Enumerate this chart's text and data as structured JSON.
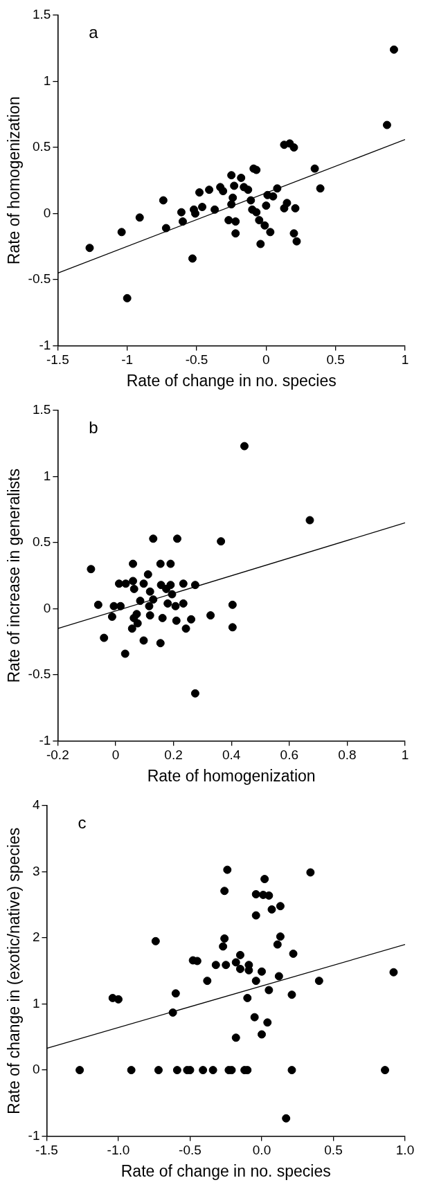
{
  "chart_data": [
    {
      "type": "scatter",
      "xlabel": "Rate of change in no. species",
      "ylabel": "Rate of homogenization",
      "annotations": [
        "a"
      ],
      "xlim": [
        -1.5,
        1
      ],
      "xticks": [
        -1.5,
        -1,
        -0.5,
        0,
        0.5,
        1
      ],
      "ylim": [
        -1,
        1.5
      ],
      "yticks": [
        -1,
        -0.5,
        0,
        0.5,
        1,
        1.5
      ],
      "grid": false,
      "legend": false,
      "marker": "circle",
      "series": [
        {
          "color": "#000000",
          "x": [
            -1.27,
            -1.04,
            -1.0,
            -0.91,
            -0.74,
            -0.72,
            -0.61,
            -0.6,
            -0.53,
            -0.52,
            -0.51,
            -0.48,
            -0.46,
            -0.41,
            -0.37,
            -0.33,
            -0.31,
            -0.27,
            -0.25,
            -0.25,
            -0.24,
            -0.23,
            -0.22,
            -0.22,
            -0.18,
            -0.16,
            -0.13,
            -0.11,
            -0.09,
            -0.07,
            -0.1,
            -0.07,
            -0.05,
            -0.04,
            -0.01,
            0.0,
            0.01,
            0.03,
            0.05,
            0.08,
            0.13,
            0.17,
            0.2,
            0.13,
            0.15,
            0.21,
            0.2,
            0.22,
            0.35,
            0.39,
            0.87,
            0.92
          ],
          "values": [
            -0.26,
            -0.14,
            -0.64,
            -0.03,
            0.1,
            -0.11,
            0.01,
            -0.06,
            -0.34,
            0.03,
            0.0,
            0.16,
            0.05,
            0.18,
            0.03,
            0.2,
            0.17,
            -0.05,
            0.29,
            0.07,
            0.12,
            0.21,
            -0.06,
            -0.15,
            0.27,
            0.2,
            0.18,
            0.1,
            0.34,
            0.33,
            0.03,
            0.01,
            -0.05,
            -0.23,
            -0.09,
            0.06,
            0.14,
            -0.14,
            0.13,
            0.19,
            0.52,
            0.53,
            0.5,
            0.04,
            0.08,
            0.04,
            -0.15,
            -0.21,
            0.34,
            0.19,
            0.67,
            1.24
          ]
        },
        {
          "type": "line",
          "marker": "none",
          "color": "#000000",
          "x": [
            -1.5,
            1
          ],
          "values": [
            -0.45,
            0.56
          ]
        }
      ]
    },
    {
      "type": "scatter",
      "xlabel": "Rate of homogenization",
      "ylabel": "Rate of increase in generalists",
      "annotations": [
        "b"
      ],
      "xlim": [
        -0.2,
        1
      ],
      "xticks": [
        -0.2,
        0,
        0.2,
        0.4,
        0.6,
        0.8,
        1
      ],
      "ylim": [
        -1,
        1.5
      ],
      "yticks": [
        -1,
        -0.5,
        0,
        0.5,
        1,
        1.5
      ],
      "grid": false,
      "legend": false,
      "marker": "circle",
      "series": [
        {
          "color": "#000000",
          "x": [
            -0.085,
            -0.06,
            -0.04,
            -0.012,
            -0.006,
            0.017,
            0.012,
            0.035,
            0.033,
            0.06,
            0.06,
            0.064,
            0.063,
            0.073,
            0.076,
            0.057,
            0.085,
            0.097,
            0.097,
            0.112,
            0.116,
            0.119,
            0.119,
            0.13,
            0.13,
            0.155,
            0.155,
            0.157,
            0.162,
            0.175,
            0.18,
            0.19,
            0.19,
            0.195,
            0.207,
            0.21,
            0.213,
            0.234,
            0.234,
            0.243,
            0.261,
            0.275,
            0.275,
            0.328,
            0.364,
            0.404,
            0.404,
            0.445,
            0.671
          ],
          "values": [
            0.3,
            0.03,
            -0.22,
            -0.06,
            0.02,
            0.02,
            0.19,
            0.19,
            -0.34,
            0.34,
            0.21,
            0.15,
            -0.07,
            -0.04,
            -0.11,
            -0.15,
            0.06,
            0.19,
            -0.24,
            0.26,
            0.02,
            0.13,
            -0.05,
            0.53,
            0.07,
            -0.26,
            0.34,
            0.18,
            -0.07,
            0.15,
            0.04,
            0.34,
            0.18,
            0.11,
            0.02,
            -0.09,
            0.53,
            0.04,
            0.19,
            -0.15,
            -0.08,
            0.18,
            -0.64,
            -0.05,
            0.51,
            0.03,
            -0.14,
            1.23,
            0.67
          ]
        },
        {
          "type": "line",
          "marker": "none",
          "color": "#000000",
          "x": [
            -0.2,
            1
          ],
          "values": [
            -0.15,
            0.65
          ]
        }
      ]
    },
    {
      "type": "scatter",
      "xlabel": "Rate of change in no. species",
      "ylabel": "Rate of change in (exotic/native) species",
      "annotations": [
        "c"
      ],
      "xlim": [
        -1.5,
        1
      ],
      "xticks": [
        {
          "value": -1.5,
          "label": "-1.5"
        },
        {
          "value": -1,
          "label": "-1.0"
        },
        {
          "value": -0.5,
          "label": "-0.5"
        },
        {
          "value": 0,
          "label": "0.0"
        },
        {
          "value": 0.5,
          "label": "0.5"
        },
        {
          "value": 1,
          "label": "1.0"
        }
      ],
      "ylim": [
        -1,
        4
      ],
      "yticks": [
        -1,
        0,
        1,
        2,
        3,
        4
      ],
      "grid": false,
      "legend": false,
      "marker": "circle",
      "series": [
        {
          "color": "#000000",
          "x": [
            -1.27,
            -1.04,
            -1.0,
            -0.91,
            -0.74,
            -0.72,
            -0.62,
            -0.6,
            -0.59,
            -0.52,
            -0.5,
            -0.48,
            -0.45,
            -0.41,
            -0.38,
            -0.34,
            -0.32,
            -0.27,
            -0.26,
            -0.26,
            -0.24,
            -0.25,
            -0.23,
            -0.21,
            -0.18,
            -0.18,
            -0.15,
            -0.15,
            -0.12,
            -0.1,
            -0.1,
            -0.09,
            -0.09,
            -0.05,
            -0.04,
            -0.04,
            -0.04,
            0.0,
            0.0,
            0.01,
            0.02,
            0.04,
            0.05,
            0.05,
            0.07,
            0.11,
            0.12,
            0.13,
            0.13,
            0.17,
            0.21,
            0.21,
            0.22,
            0.34,
            0.4,
            0.86,
            0.92
          ],
          "values": [
            0,
            1.09,
            1.07,
            0,
            1.95,
            0,
            0.87,
            1.16,
            0,
            0,
            0,
            1.66,
            1.65,
            0,
            1.35,
            0,
            1.59,
            1.87,
            1.99,
            2.71,
            3.03,
            1.59,
            0,
            0,
            0.49,
            1.63,
            1.74,
            1.53,
            0,
            0,
            1.09,
            1.59,
            1.51,
            0.8,
            1.35,
            2.34,
            2.66,
            1.49,
            0.54,
            2.65,
            2.89,
            0.72,
            2.64,
            1.21,
            2.43,
            1.9,
            1.42,
            2.48,
            2.02,
            -0.73,
            0,
            1.14,
            1.76,
            2.99,
            1.35,
            0,
            1.48
          ]
        },
        {
          "type": "line",
          "marker": "none",
          "color": "#000000",
          "x": [
            -1.5,
            1
          ],
          "values": [
            0.33,
            1.9
          ]
        }
      ]
    }
  ]
}
